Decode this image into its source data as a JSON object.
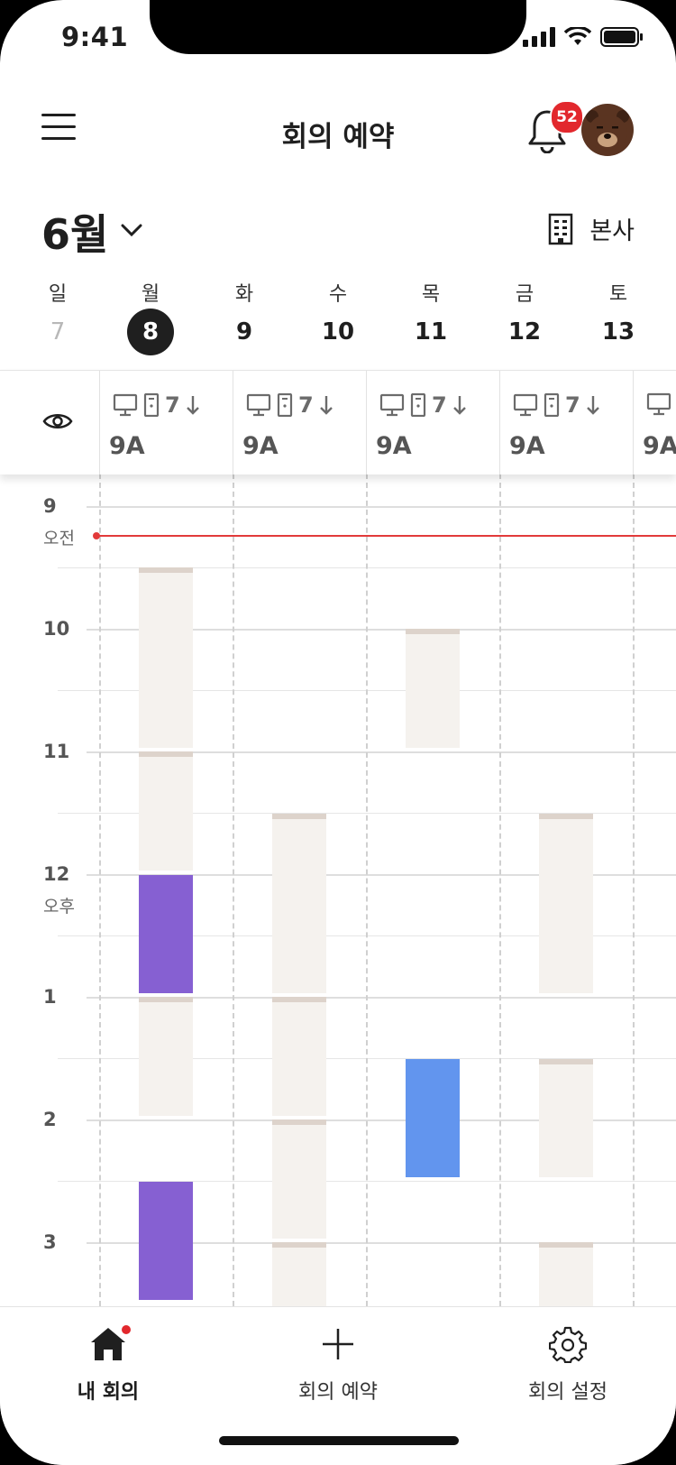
{
  "status": {
    "time": "9:41"
  },
  "header": {
    "title": "회의 예약",
    "notification_count": "52"
  },
  "month": {
    "label": "6월"
  },
  "location": {
    "label": "본사"
  },
  "week": [
    {
      "name": "일",
      "num": "7",
      "state": "muted"
    },
    {
      "name": "월",
      "num": "8",
      "state": "selected"
    },
    {
      "name": "화",
      "num": "9",
      "state": "normal"
    },
    {
      "name": "수",
      "num": "10",
      "state": "normal"
    },
    {
      "name": "목",
      "num": "11",
      "state": "normal"
    },
    {
      "name": "금",
      "num": "12",
      "state": "normal"
    },
    {
      "name": "토",
      "num": "13",
      "state": "normal"
    }
  ],
  "rooms": [
    {
      "name": "9A",
      "capacity": "7"
    },
    {
      "name": "9A",
      "capacity": "7"
    },
    {
      "name": "9A",
      "capacity": "7"
    },
    {
      "name": "9A",
      "capacity": "7"
    },
    {
      "name": "9A",
      "capacity": ""
    }
  ],
  "timeline": {
    "hours": [
      "9",
      "10",
      "11",
      "12",
      "1",
      "2",
      "3"
    ],
    "am_label": "오전",
    "pm_label": "오후"
  },
  "colors": {
    "mine": "#8660d2",
    "other": "#6295ee",
    "free": "#f5f2ee",
    "now": "#e23a3a",
    "badge": "#e2282d"
  },
  "tabs": [
    {
      "label": "내 회의",
      "icon": "home-icon",
      "active": true
    },
    {
      "label": "회의 예약",
      "icon": "plus-icon",
      "active": false
    },
    {
      "label": "회의 설정",
      "icon": "gear-icon",
      "active": false
    }
  ]
}
